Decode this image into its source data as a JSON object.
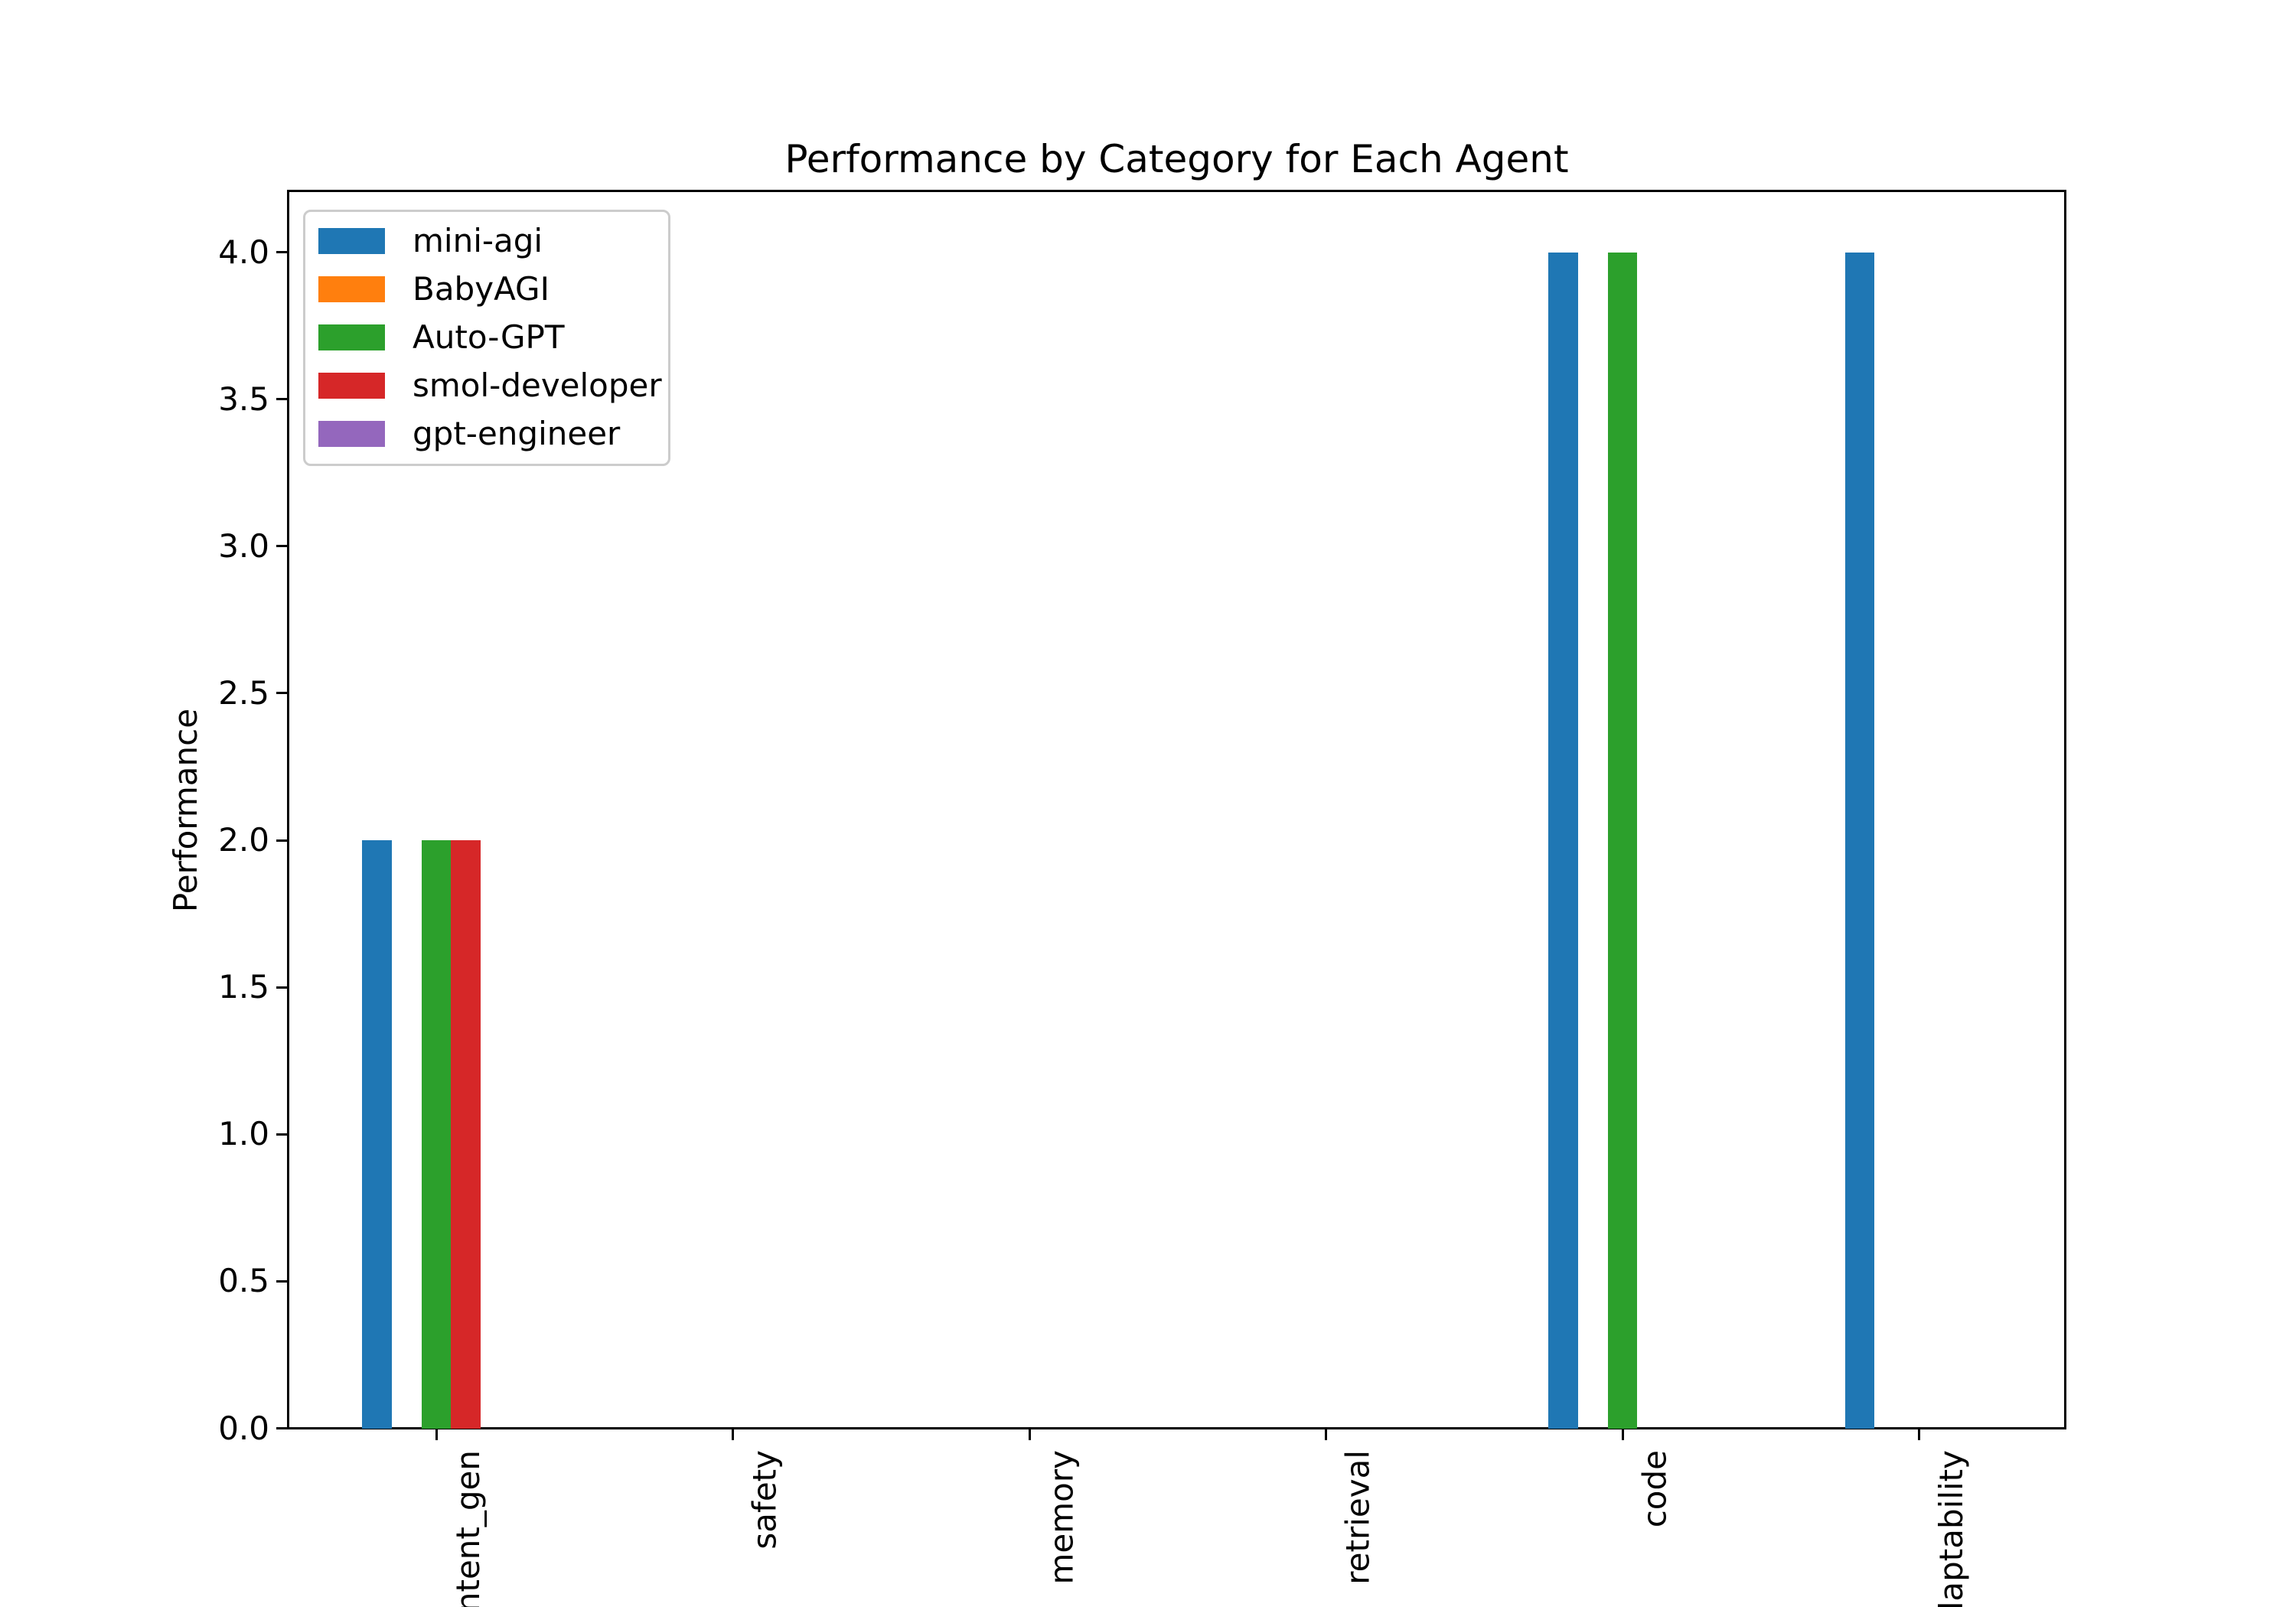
{
  "chart_data": {
    "type": "bar",
    "title": "Performance by Category for Each Agent",
    "ylabel": "Performance",
    "xlabel": "",
    "categories": [
      "content_gen",
      "safety",
      "memory",
      "retrieval",
      "code",
      "adaptability"
    ],
    "series": [
      {
        "name": "mini-agi",
        "color": "#1f77b4",
        "values": [
          2,
          0,
          0,
          0,
          4,
          4
        ]
      },
      {
        "name": "BabyAGI",
        "color": "#ff7f0e",
        "values": [
          0,
          0,
          0,
          0,
          0,
          0
        ]
      },
      {
        "name": "Auto-GPT",
        "color": "#2ca02c",
        "values": [
          2,
          0,
          0,
          0,
          4,
          0
        ]
      },
      {
        "name": "smol-developer",
        "color": "#d62728",
        "values": [
          2,
          0,
          0,
          0,
          0,
          0
        ]
      },
      {
        "name": "gpt-engineer",
        "color": "#9467bd",
        "values": [
          0,
          0,
          0,
          0,
          0,
          0
        ]
      }
    ],
    "yticks": [
      "0.0",
      "0.5",
      "1.0",
      "1.5",
      "2.0",
      "2.5",
      "3.0",
      "3.5",
      "4.0"
    ],
    "ylim": [
      0,
      4.21
    ],
    "grid": false,
    "legend_position": "upper left",
    "axis_color": "#000000",
    "background_color": "#ffffff"
  }
}
